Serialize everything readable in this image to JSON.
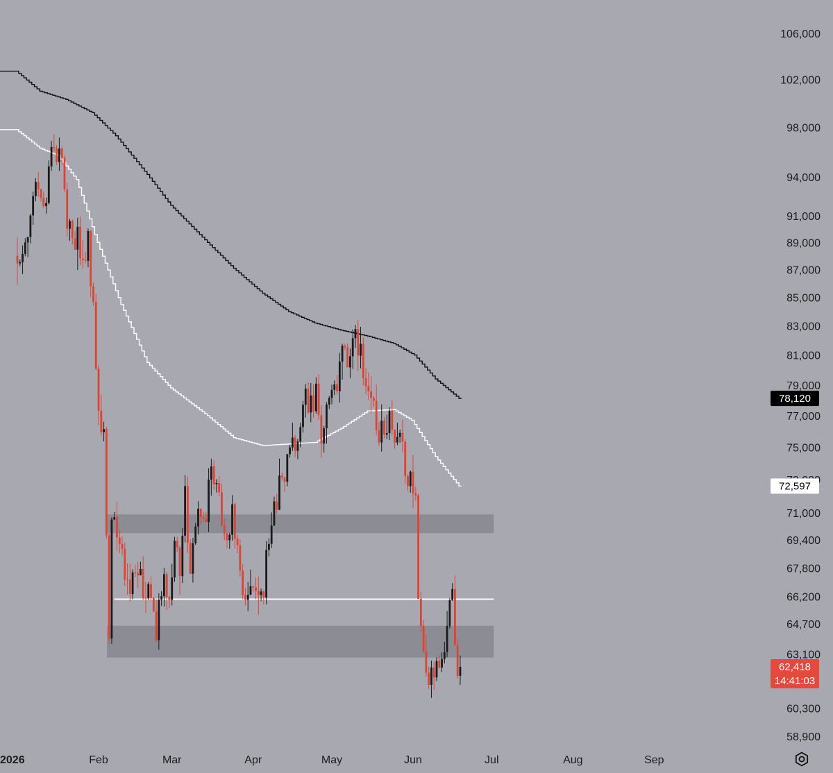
{
  "chart_data": {
    "type": "candlestick",
    "title": "",
    "scale": "log",
    "y_ticks": [
      106000,
      102000,
      98000,
      94000,
      91000,
      89000,
      87000,
      85000,
      83000,
      81000,
      79000,
      77000,
      75000,
      73000,
      71000,
      69400,
      67800,
      66200,
      64700,
      63100,
      60300,
      58900
    ],
    "y_tick_labels": [
      "106,000",
      "102,000",
      "98,000",
      "94,000",
      "91,000",
      "89,000",
      "87,000",
      "85,000",
      "83,000",
      "81,000",
      "79,000",
      "77,000",
      "75,000",
      "73,000",
      "71,000",
      "69,400",
      "67,800",
      "66,200",
      "64,700",
      "63,100",
      "60,300",
      "58,900"
    ],
    "x_labels": [
      {
        "label": "2026",
        "date": "2026-01-01"
      },
      {
        "label": "Feb",
        "date": "2026-02-01"
      },
      {
        "label": "Mar",
        "date": "2026-03-01"
      },
      {
        "label": "Apr",
        "date": "2026-04-01"
      },
      {
        "label": "May",
        "date": "2026-05-01"
      },
      {
        "label": "Jun",
        "date": "2026-06-01"
      },
      {
        "label": "Jul",
        "date": "2026-07-01"
      },
      {
        "label": "Aug",
        "date": "2026-08-01"
      },
      {
        "label": "Sep",
        "date": "2026-09-01"
      }
    ],
    "candle_start_date": "2026-01-01",
    "candle_end_date": "2026-06-19",
    "price_anchors": [
      [
        "2026-01-01",
        88000
      ],
      [
        "2026-01-04",
        89500
      ],
      [
        "2026-01-06",
        91000
      ],
      [
        "2026-01-08",
        94500
      ],
      [
        "2026-01-10",
        92000
      ],
      [
        "2026-01-12",
        91500
      ],
      [
        "2026-01-14",
        96500
      ],
      [
        "2026-01-16",
        96000
      ],
      [
        "2026-01-18",
        95000
      ],
      [
        "2026-01-20",
        90500
      ],
      [
        "2026-01-22",
        89000
      ],
      [
        "2026-01-24",
        89800
      ],
      [
        "2026-01-26",
        87200
      ],
      [
        "2026-01-28",
        89000
      ],
      [
        "2026-01-30",
        84500
      ],
      [
        "2026-02-01",
        77000
      ],
      [
        "2026-02-03",
        76000
      ],
      [
        "2026-02-05",
        63300
      ],
      [
        "2026-02-06",
        70500
      ],
      [
        "2026-02-09",
        69000
      ],
      [
        "2026-02-12",
        66500
      ],
      [
        "2026-02-15",
        68000
      ],
      [
        "2026-02-18",
        66800
      ],
      [
        "2026-02-20",
        66600
      ],
      [
        "2026-02-23",
        64500
      ],
      [
        "2026-02-26",
        67800
      ],
      [
        "2026-02-28",
        65800
      ],
      [
        "2026-03-02",
        70000
      ],
      [
        "2026-03-04",
        68000
      ],
      [
        "2026-03-06",
        72000
      ],
      [
        "2026-03-08",
        68000
      ],
      [
        "2026-03-10",
        70000
      ],
      [
        "2026-03-12",
        71000
      ],
      [
        "2026-03-14",
        71000
      ],
      [
        "2026-03-16",
        74500
      ],
      [
        "2026-03-18",
        72000
      ],
      [
        "2026-03-20",
        71000
      ],
      [
        "2026-03-22",
        69700
      ],
      [
        "2026-03-24",
        71000
      ],
      [
        "2026-03-26",
        68700
      ],
      [
        "2026-03-28",
        66500
      ],
      [
        "2026-03-30",
        66800
      ],
      [
        "2026-04-02",
        67000
      ],
      [
        "2026-04-05",
        66800
      ],
      [
        "2026-04-07",
        69800
      ],
      [
        "2026-04-09",
        71000
      ],
      [
        "2026-04-11",
        72500
      ],
      [
        "2026-04-13",
        73500
      ],
      [
        "2026-04-15",
        75500
      ],
      [
        "2026-04-17",
        74200
      ],
      [
        "2026-04-19",
        77000
      ],
      [
        "2026-04-21",
        78000
      ],
      [
        "2026-04-23",
        77500
      ],
      [
        "2026-04-25",
        78500
      ],
      [
        "2026-04-27",
        76000
      ],
      [
        "2026-04-29",
        77500
      ],
      [
        "2026-05-01",
        78000
      ],
      [
        "2026-05-03",
        78800
      ],
      [
        "2026-05-05",
        81000
      ],
      [
        "2026-05-07",
        80500
      ],
      [
        "2026-05-09",
        82000
      ],
      [
        "2026-05-11",
        81800
      ],
      [
        "2026-05-13",
        80000
      ],
      [
        "2026-05-15",
        78500
      ],
      [
        "2026-05-17",
        77800
      ],
      [
        "2026-05-19",
        76000
      ],
      [
        "2026-05-21",
        76500
      ],
      [
        "2026-05-23",
        76500
      ],
      [
        "2026-05-25",
        75500
      ],
      [
        "2026-05-27",
        76500
      ],
      [
        "2026-05-29",
        73500
      ],
      [
        "2026-05-31",
        73000
      ],
      [
        "2026-06-02",
        72000
      ],
      [
        "2026-06-03",
        66000
      ],
      [
        "2026-06-05",
        63000
      ],
      [
        "2026-06-07",
        61000
      ],
      [
        "2026-06-09",
        62500
      ],
      [
        "2026-06-11",
        61800
      ],
      [
        "2026-06-13",
        63500
      ],
      [
        "2026-06-15",
        65500
      ],
      [
        "2026-06-16",
        66500
      ],
      [
        "2026-06-17",
        64000
      ],
      [
        "2026-06-18",
        62500
      ],
      [
        "2026-06-19",
        62418
      ]
    ],
    "moving_average_fast": {
      "color": "#ffffff",
      "points": [
        [
          "2026-01-01",
          97800
        ],
        [
          "2026-01-10",
          96300
        ],
        [
          "2026-01-17",
          95700
        ],
        [
          "2026-01-24",
          93800
        ],
        [
          "2026-02-01",
          89000
        ],
        [
          "2026-02-10",
          84500
        ],
        [
          "2026-02-20",
          80500
        ],
        [
          "2026-03-01",
          78800
        ],
        [
          "2026-03-15",
          77000
        ],
        [
          "2026-03-25",
          75600
        ],
        [
          "2026-04-05",
          75100
        ],
        [
          "2026-04-15",
          75200
        ],
        [
          "2026-04-25",
          75300
        ],
        [
          "2026-05-05",
          76200
        ],
        [
          "2026-05-15",
          77300
        ],
        [
          "2026-05-25",
          77400
        ],
        [
          "2026-06-01",
          76700
        ],
        [
          "2026-06-10",
          74400
        ],
        [
          "2026-06-19",
          72597
        ]
      ]
    },
    "moving_average_slow": {
      "color": "#111111",
      "points": [
        [
          "2026-01-01",
          102700
        ],
        [
          "2026-01-10",
          101000
        ],
        [
          "2026-01-20",
          100300
        ],
        [
          "2026-01-30",
          99200
        ],
        [
          "2026-02-08",
          97300
        ],
        [
          "2026-02-20",
          94200
        ],
        [
          "2026-03-01",
          91800
        ],
        [
          "2026-03-15",
          89000
        ],
        [
          "2026-03-25",
          87100
        ],
        [
          "2026-04-05",
          85300
        ],
        [
          "2026-04-15",
          84000
        ],
        [
          "2026-04-25",
          83200
        ],
        [
          "2026-05-05",
          82700
        ],
        [
          "2026-05-15",
          82300
        ],
        [
          "2026-05-25",
          81800
        ],
        [
          "2026-06-02",
          81000
        ],
        [
          "2026-06-10",
          79400
        ],
        [
          "2026-06-19",
          78120
        ]
      ]
    },
    "zones": [
      {
        "from_date": "2026-02-05",
        "to_date": "2026-07-01",
        "low": 69800,
        "high": 70900,
        "color": "#8c8d94"
      },
      {
        "from_date": "2026-02-05",
        "to_date": "2026-07-01",
        "low": 62900,
        "high": 64600,
        "color": "#8c8d94"
      }
    ],
    "level_line": {
      "from_date": "2026-02-07",
      "to_date": "2026-07-01",
      "value": 66050,
      "color": "#ffffff"
    },
    "price_tags": [
      {
        "label": "78,120",
        "bg": "#000000",
        "fg": "#ffffff",
        "value": 78120
      },
      {
        "label": "72,597",
        "bg": "#ffffff",
        "fg": "#000000",
        "value": 72597
      },
      {
        "label": "62,418",
        "sub_label": "14:41:03",
        "bg": "#e4493c",
        "fg": "#ffffff",
        "value": 62418
      }
    ],
    "up_color": "#1a1a1a",
    "down_color": "#e04234",
    "grid": false
  },
  "icons": {
    "settings": "gear-icon"
  }
}
